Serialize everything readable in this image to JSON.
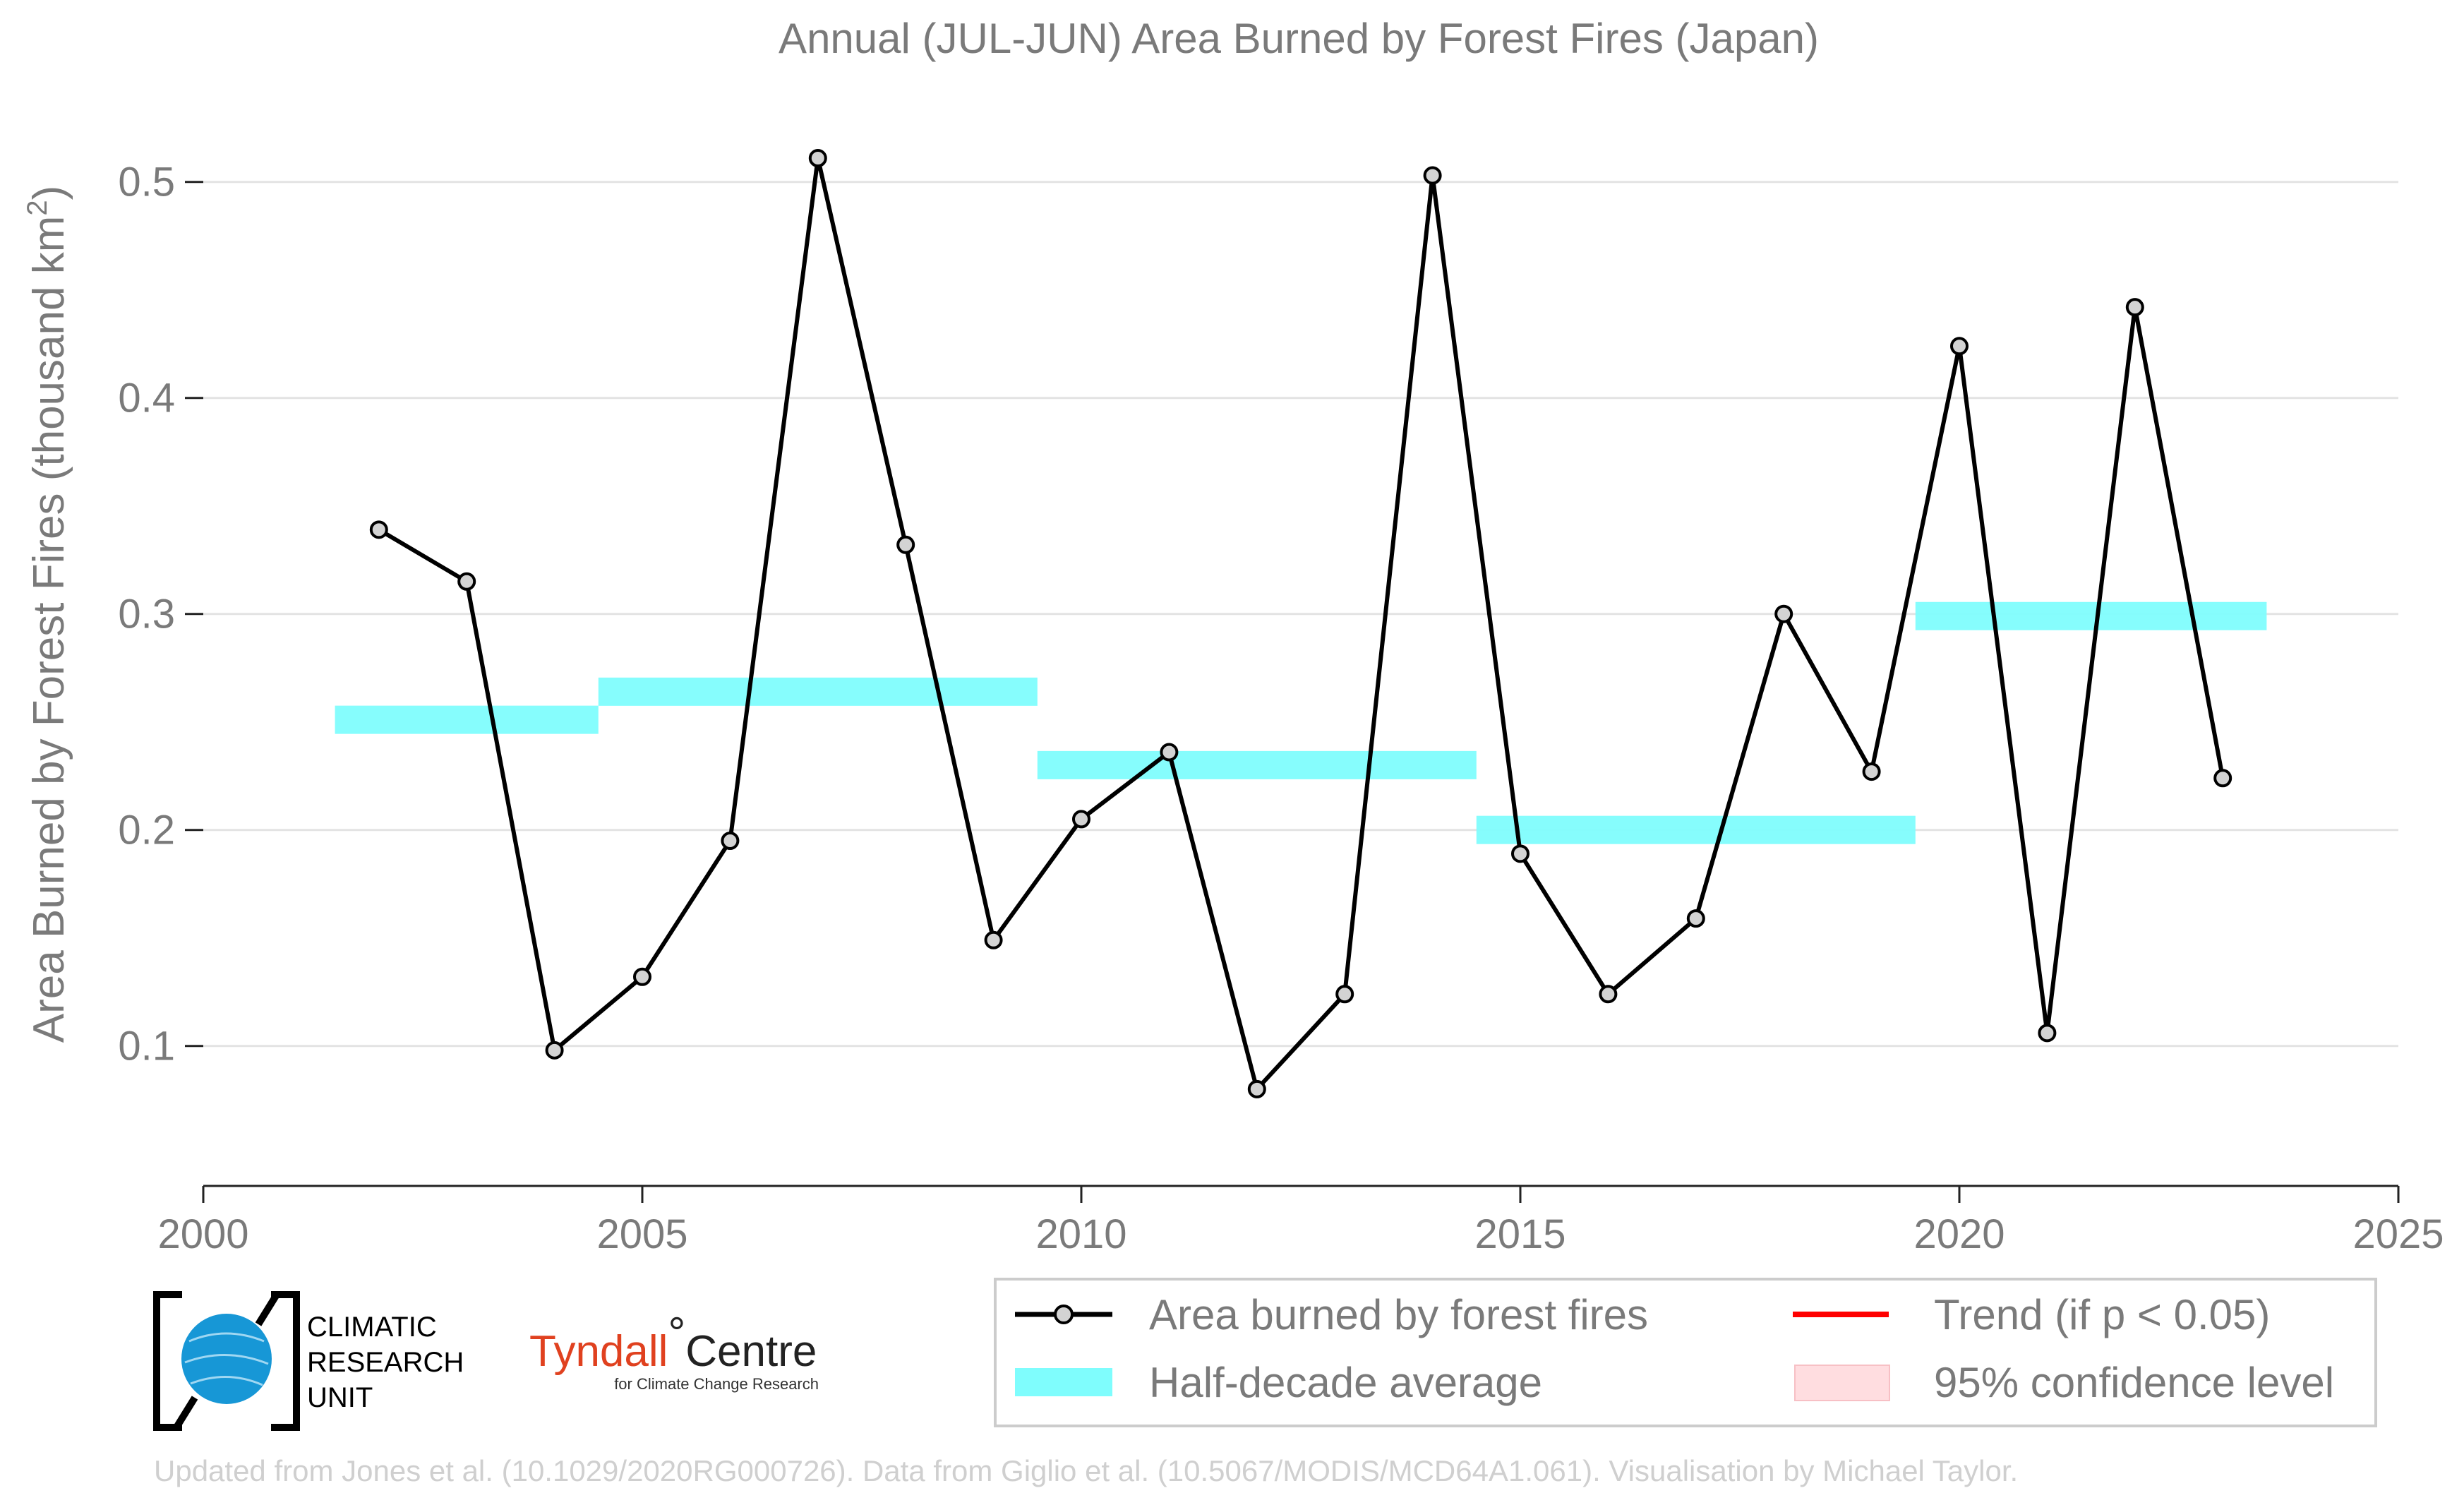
{
  "chart_data": {
    "type": "line",
    "title": "Annual (JUL-JUN) Area Burned by Forest Fires (Japan)",
    "ylabel": "Area Burned by Forest Fires (thousand km²)",
    "ylabel_main": "Area Burned by Forest Fires (thousand km",
    "ylabel_sup": "2",
    "ylabel_close": ")",
    "xlabel": "",
    "xlim": [
      2000,
      2025
    ],
    "ylim": [
      0.045,
      0.545
    ],
    "x_ticks": [
      2000,
      2005,
      2010,
      2015,
      2020,
      2025
    ],
    "y_ticks": [
      0.1,
      0.2,
      0.3,
      0.4,
      0.5
    ],
    "grid": "horizontal",
    "series": [
      {
        "name": "Area burned by forest fires",
        "color": "#000000",
        "x": [
          2002,
          2003,
          2004,
          2005,
          2006,
          2007,
          2008,
          2009,
          2010,
          2011,
          2012,
          2013,
          2014,
          2015,
          2016,
          2017,
          2018,
          2019,
          2020,
          2021,
          2022,
          2023
        ],
        "y": [
          0.339,
          0.315,
          0.098,
          0.132,
          0.195,
          0.511,
          0.332,
          0.149,
          0.205,
          0.236,
          0.08,
          0.124,
          0.503,
          0.189,
          0.124,
          0.159,
          0.3,
          0.227,
          0.424,
          0.106,
          0.442,
          0.224
        ]
      }
    ],
    "half_decade_average": {
      "name": "Half-decade average",
      "color": "#7ffdfd",
      "segments": [
        {
          "x0": 2001.5,
          "x1": 2004.5,
          "y": 0.251
        },
        {
          "x0": 2004.5,
          "x1": 2009.5,
          "y": 0.264
        },
        {
          "x0": 2009.5,
          "x1": 2014.5,
          "y": 0.23
        },
        {
          "x0": 2014.5,
          "x1": 2019.5,
          "y": 0.2
        },
        {
          "x0": 2019.5,
          "x1": 2023.5,
          "y": 0.299
        }
      ]
    },
    "legend": {
      "placement": "bottom-right",
      "entries": [
        {
          "label": "Area burned by forest fires",
          "symbol": "line-marker",
          "color": "#000000"
        },
        {
          "label": "Trend (if p < 0.05)",
          "symbol": "line",
          "color": "#ff0000"
        },
        {
          "label": "Half-decade average",
          "symbol": "band",
          "color": "#7ffdfd"
        },
        {
          "label": "95% confidence level",
          "symbol": "box",
          "color": "#ffdde0"
        }
      ]
    }
  },
  "logos": {
    "cru": [
      "CLIMATIC",
      "RESEARCH",
      "UNIT"
    ],
    "tyndall_main": "Tyndall",
    "tyndall_degree": "°",
    "tyndall_centre": "Centre",
    "tyndall_sub": "for Climate Change Research"
  },
  "footer": "Updated from Jones et al. (10.1029/2020RG000726). Data from Giglio et al. (10.5067/MODIS/MCD64A1.061). Visualisation by Michael Taylor."
}
